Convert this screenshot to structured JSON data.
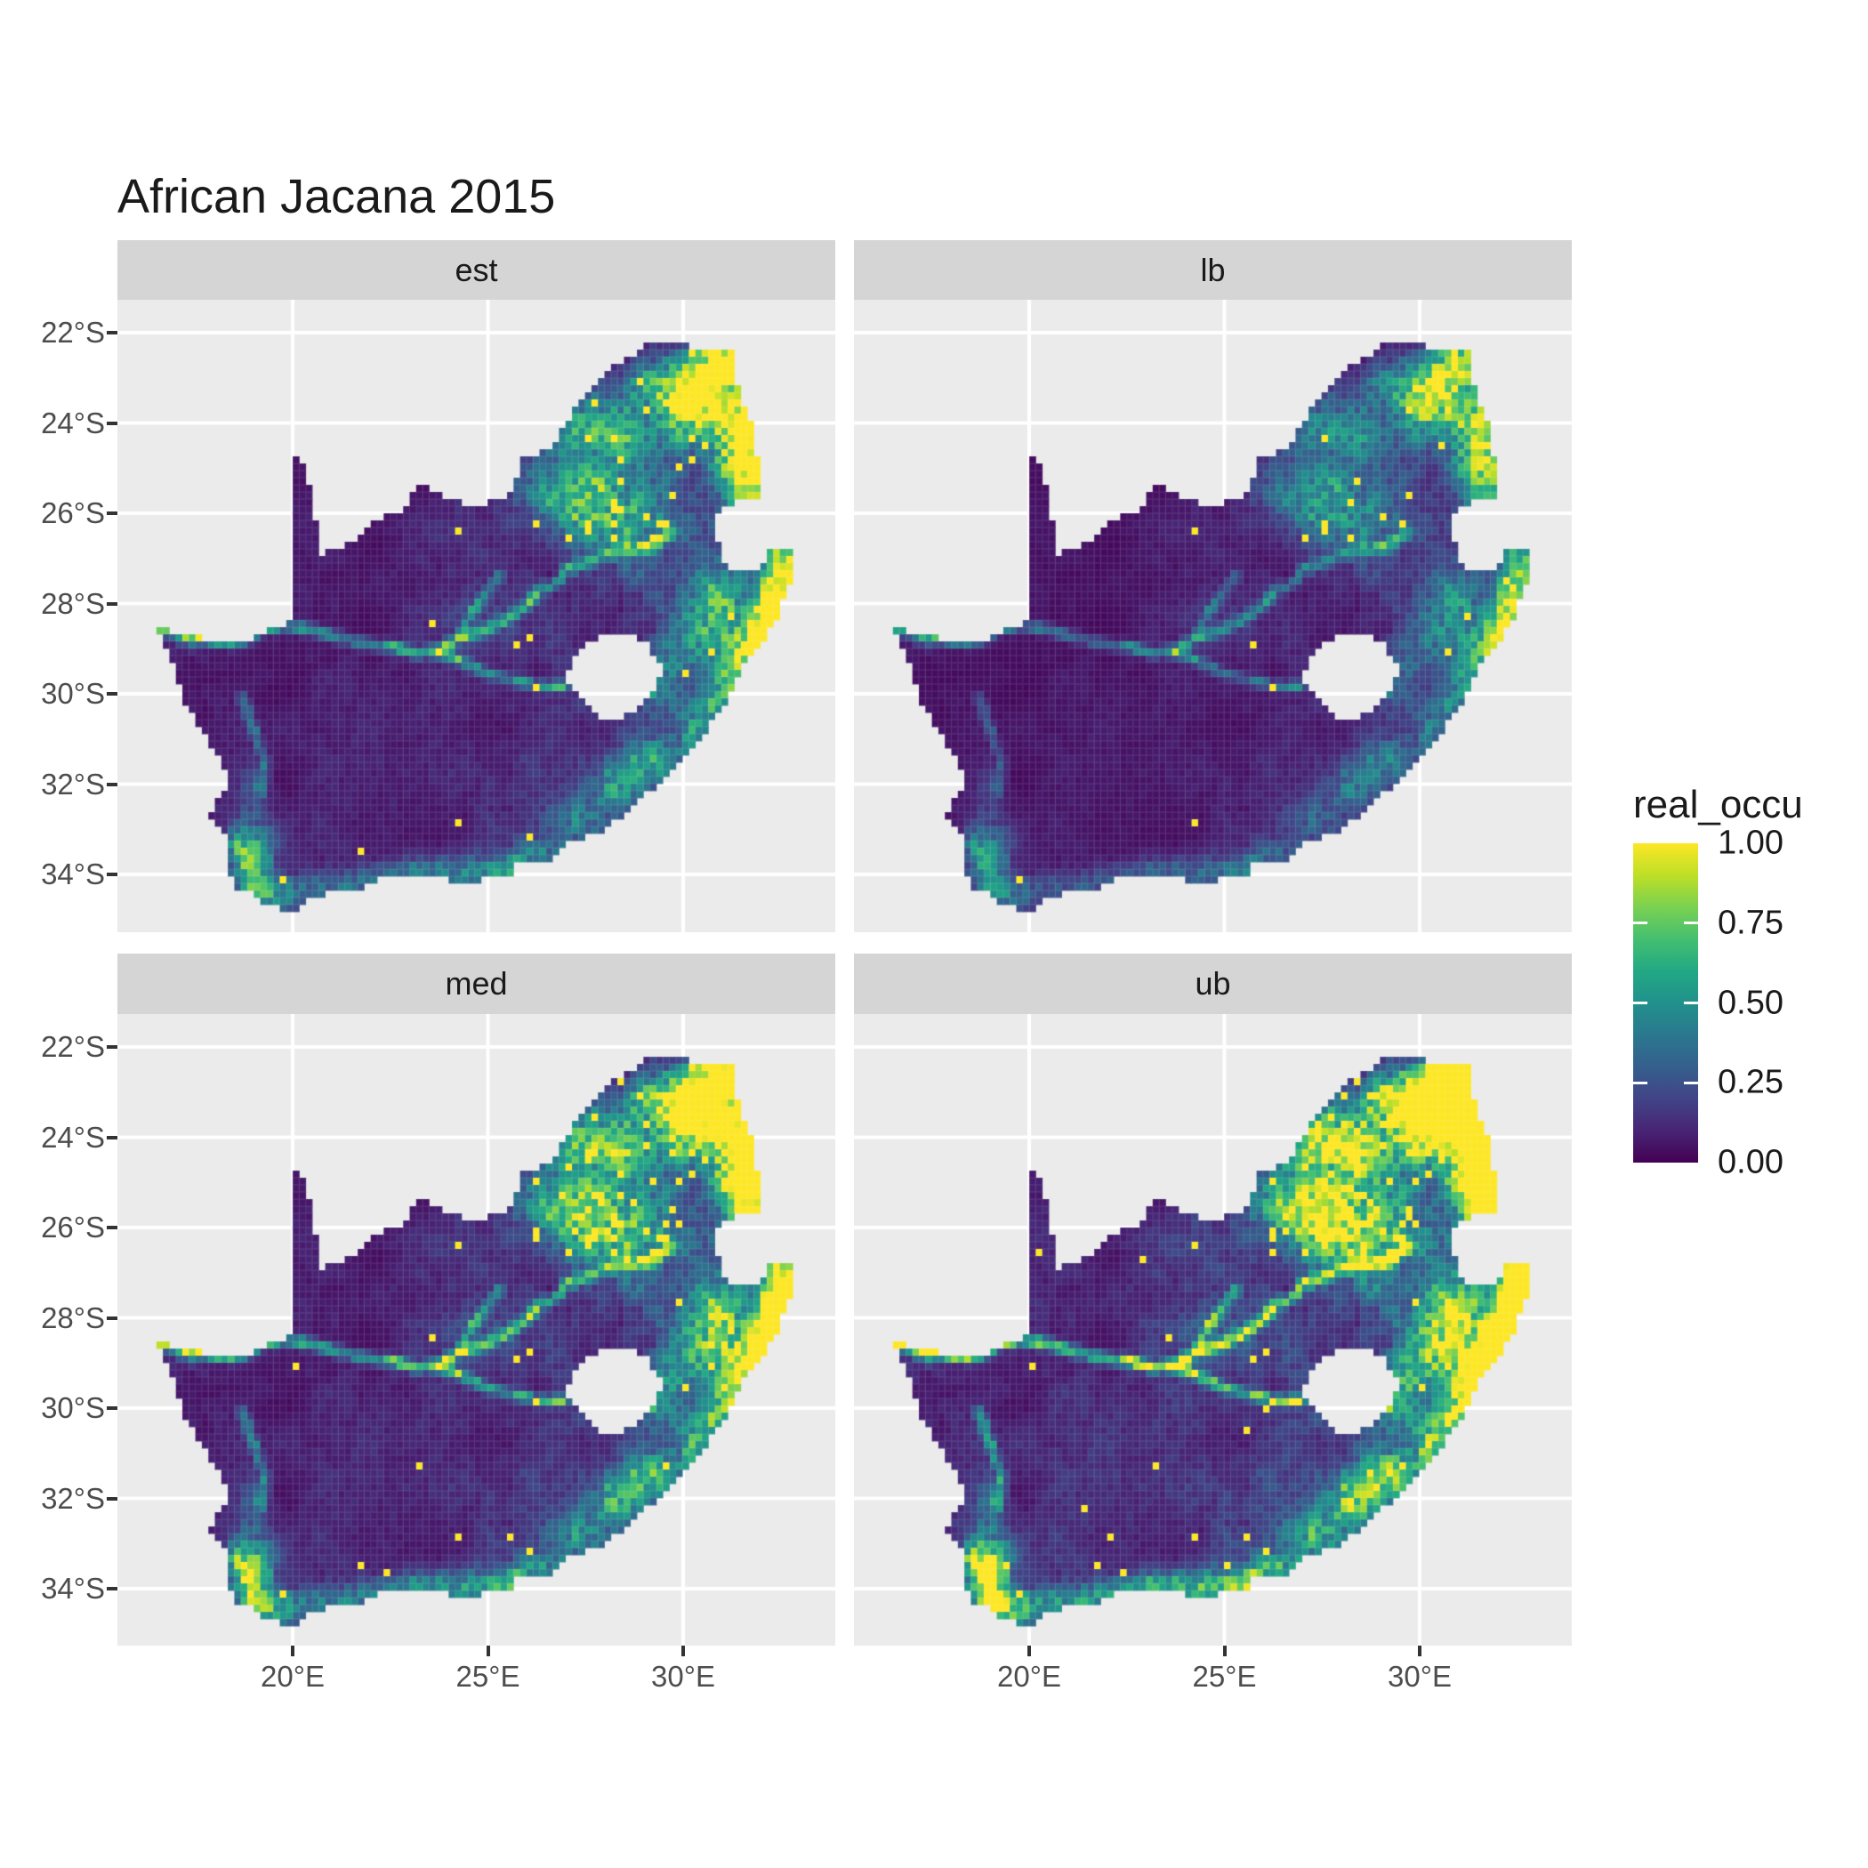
{
  "title": "African Jacana 2015",
  "colors": {
    "background": "#FFFFFF",
    "panel_background": "#EBEBEB",
    "strip_background": "#D5D5D5",
    "grid_line": "#FFFFFF",
    "axis_text": "#4D4D4D",
    "tick_mark": "#333333",
    "text": "#1A1A1A"
  },
  "chart_data": {
    "type": "heatmap",
    "title": "African Jacana 2015",
    "region": "South Africa",
    "facets": [
      {
        "label": "est",
        "value_scale": 1.0,
        "speckle_scale": 1.0
      },
      {
        "label": "lb",
        "value_scale": 0.74,
        "speckle_scale": 0.6
      },
      {
        "label": "med",
        "value_scale": 1.18,
        "speckle_scale": 1.5
      },
      {
        "label": "ub",
        "value_scale": 1.5,
        "speckle_scale": 2.4
      }
    ],
    "x_ticks": [
      {
        "label": "20°E",
        "lon": 20
      },
      {
        "label": "25°E",
        "lon": 25
      },
      {
        "label": "30°E",
        "lon": 30
      }
    ],
    "y_ticks": [
      {
        "label": "22°S",
        "lat_south": 22
      },
      {
        "label": "24°S",
        "lat_south": 24
      },
      {
        "label": "26°S",
        "lat_south": 26
      },
      {
        "label": "28°S",
        "lat_south": 28
      },
      {
        "label": "30°S",
        "lat_south": 30
      },
      {
        "label": "32°S",
        "lat_south": 32
      },
      {
        "label": "34°S",
        "lat_south": 34
      }
    ],
    "legend": {
      "title": "real_occu",
      "value_range": [
        0,
        1
      ],
      "ticks": [
        {
          "label": "1.00",
          "value": 1.0
        },
        {
          "label": "0.75",
          "value": 0.75
        },
        {
          "label": "0.50",
          "value": 0.5
        },
        {
          "label": "0.25",
          "value": 0.25
        },
        {
          "label": "0.00",
          "value": 0.0
        }
      ]
    },
    "viridis": [
      "#440154",
      "#482475",
      "#414487",
      "#355F8D",
      "#2A788E",
      "#21918C",
      "#22A884",
      "#44BF70",
      "#7AD151",
      "#BDDF26",
      "#FDE725"
    ],
    "map": {
      "note": "coordinates are [lon_deg_east, lat_deg_south]",
      "cell_deg_lon": 0.16629,
      "cell_deg_lat": 0.15764,
      "sa_outline": [
        [
          16.45,
          28.58
        ],
        [
          16.78,
          28.95
        ],
        [
          16.92,
          29.35
        ],
        [
          17.06,
          29.66
        ],
        [
          17.26,
          30.2
        ],
        [
          17.56,
          30.62
        ],
        [
          17.86,
          31.1
        ],
        [
          18.26,
          31.66
        ],
        [
          18.31,
          32.05
        ],
        [
          18.06,
          32.4
        ],
        [
          17.87,
          32.76
        ],
        [
          18.26,
          33.06
        ],
        [
          18.32,
          33.5
        ],
        [
          18.26,
          33.92
        ],
        [
          18.46,
          34.1
        ],
        [
          18.41,
          34.36
        ],
        [
          18.81,
          34.32
        ],
        [
          19.0,
          34.42
        ],
        [
          19.32,
          34.64
        ],
        [
          19.72,
          34.76
        ],
        [
          20.03,
          34.83
        ],
        [
          20.56,
          34.48
        ],
        [
          21.01,
          34.4
        ],
        [
          21.56,
          34.41
        ],
        [
          22.16,
          34.1
        ],
        [
          22.61,
          34.05
        ],
        [
          23.06,
          34.1
        ],
        [
          23.96,
          34.1
        ],
        [
          24.56,
          34.2
        ],
        [
          25.01,
          34.02
        ],
        [
          25.66,
          34.04
        ],
        [
          25.72,
          33.8
        ],
        [
          26.46,
          33.78
        ],
        [
          27.06,
          33.26
        ],
        [
          27.91,
          33.06
        ],
        [
          28.61,
          32.6
        ],
        [
          29.21,
          32.1
        ],
        [
          29.91,
          31.46
        ],
        [
          30.61,
          30.8
        ],
        [
          31.11,
          30.16
        ],
        [
          31.36,
          29.6
        ],
        [
          32.01,
          28.86
        ],
        [
          32.41,
          28.3
        ],
        [
          32.71,
          27.6
        ],
        [
          32.9,
          26.87
        ],
        [
          32.13,
          26.85
        ],
        [
          31.96,
          27.32
        ],
        [
          31.51,
          27.31
        ],
        [
          31.11,
          27.21
        ],
        [
          30.96,
          26.81
        ],
        [
          30.81,
          26.41
        ],
        [
          30.91,
          26.01
        ],
        [
          31.11,
          25.81
        ],
        [
          31.46,
          25.73
        ],
        [
          31.96,
          25.66
        ],
        [
          31.91,
          24.81
        ],
        [
          31.81,
          24.21
        ],
        [
          31.56,
          23.61
        ],
        [
          31.31,
          22.91
        ],
        [
          31.29,
          22.4
        ],
        [
          30.81,
          22.31
        ],
        [
          30.31,
          22.36
        ],
        [
          29.61,
          22.17
        ],
        [
          29.11,
          22.21
        ],
        [
          28.56,
          22.58
        ],
        [
          28.01,
          22.81
        ],
        [
          27.66,
          23.21
        ],
        [
          27.21,
          23.66
        ],
        [
          26.86,
          24.26
        ],
        [
          26.41,
          24.64
        ],
        [
          25.91,
          24.76
        ],
        [
          25.81,
          25.16
        ],
        [
          25.41,
          25.66
        ],
        [
          24.91,
          25.79
        ],
        [
          24.31,
          25.77
        ],
        [
          23.71,
          25.56
        ],
        [
          23.26,
          25.31
        ],
        [
          22.81,
          25.91
        ],
        [
          22.16,
          26.16
        ],
        [
          21.56,
          26.61
        ],
        [
          20.96,
          26.81
        ],
        [
          20.69,
          26.91
        ],
        [
          20.61,
          26.36
        ],
        [
          20.49,
          25.71
        ],
        [
          20.36,
          25.11
        ],
        [
          20.26,
          24.91
        ],
        [
          20.0,
          24.77
        ],
        [
          19.99,
          26.01
        ],
        [
          19.99,
          27.01
        ],
        [
          19.99,
          28.05
        ],
        [
          19.98,
          28.42
        ],
        [
          19.41,
          28.56
        ],
        [
          18.71,
          28.86
        ],
        [
          18.11,
          28.91
        ],
        [
          17.61,
          28.76
        ],
        [
          17.11,
          28.61
        ]
      ],
      "lesotho_hole": [
        [
          27.01,
          29.6
        ],
        [
          27.31,
          29.1
        ],
        [
          27.56,
          28.9
        ],
        [
          28.11,
          28.66
        ],
        [
          28.61,
          28.6
        ],
        [
          29.11,
          28.91
        ],
        [
          29.36,
          29.26
        ],
        [
          29.46,
          29.51
        ],
        [
          29.26,
          29.86
        ],
        [
          28.96,
          30.21
        ],
        [
          28.51,
          30.46
        ],
        [
          28.11,
          30.62
        ],
        [
          27.76,
          30.42
        ],
        [
          27.41,
          30.1
        ],
        [
          27.11,
          29.9
        ]
      ],
      "rivers": [
        {
          "amp": 0.5,
          "pts": [
            [
              29.76,
              26.41
            ],
            [
              29.21,
              26.71
            ],
            [
              28.61,
              26.81
            ],
            [
              28.11,
              26.86
            ],
            [
              27.61,
              27.06
            ],
            [
              27.01,
              27.26
            ],
            [
              26.76,
              27.56
            ],
            [
              26.31,
              27.71
            ],
            [
              25.91,
              28.11
            ],
            [
              25.36,
              28.41
            ],
            [
              24.86,
              28.61
            ],
            [
              24.31,
              28.73
            ],
            [
              23.71,
              29.06
            ],
            [
              23.21,
              29.11
            ],
            [
              22.61,
              28.96
            ],
            [
              21.91,
              28.91
            ],
            [
              21.21,
              28.76
            ],
            [
              20.56,
              28.61
            ],
            [
              19.91,
              28.49
            ],
            [
              19.31,
              28.56
            ],
            [
              18.61,
              28.86
            ],
            [
              17.91,
              28.83
            ],
            [
              17.21,
              28.63
            ],
            [
              16.61,
              28.59
            ]
          ]
        },
        {
          "amp": 0.45,
          "pts": [
            [
              26.96,
              29.86
            ],
            [
              26.31,
              29.81
            ],
            [
              25.66,
              29.71
            ],
            [
              25.01,
              29.56
            ],
            [
              24.41,
              29.31
            ],
            [
              23.91,
              29.13
            ],
            [
              23.71,
              29.06
            ]
          ]
        },
        {
          "amp": 0.3,
          "pts": [
            [
              25.31,
              27.41
            ],
            [
              24.91,
              27.81
            ],
            [
              24.56,
              28.21
            ],
            [
              24.31,
              28.73
            ]
          ]
        },
        {
          "amp": 0.3,
          "pts": [
            [
              18.71,
              30.11
            ],
            [
              19.01,
              30.81
            ],
            [
              19.31,
              31.51
            ],
            [
              19.21,
              32.11
            ]
          ]
        }
      ],
      "hotspots": [
        [
          30.55,
          23.05,
          0.55,
          0.5,
          1.2
        ],
        [
          31.15,
          22.6,
          0.45,
          0.3,
          1.0
        ],
        [
          30.1,
          23.8,
          0.45,
          0.4,
          0.75
        ],
        [
          31.4,
          23.8,
          0.45,
          0.6,
          0.85
        ],
        [
          29.35,
          23.15,
          0.55,
          0.35,
          0.6
        ],
        [
          28.45,
          24.3,
          0.85,
          0.6,
          0.5
        ],
        [
          27.3,
          24.2,
          0.75,
          0.5,
          0.4
        ],
        [
          28.25,
          25.9,
          0.85,
          0.6,
          0.55
        ],
        [
          27.4,
          25.8,
          0.65,
          0.45,
          0.4
        ],
        [
          26.6,
          25.45,
          0.7,
          0.45,
          0.32
        ],
        [
          31.4,
          24.8,
          0.5,
          0.7,
          0.75
        ],
        [
          31.9,
          25.3,
          0.4,
          0.6,
          0.85
        ],
        [
          32.55,
          27.3,
          0.38,
          0.55,
          1.15
        ],
        [
          32.3,
          28.2,
          0.33,
          0.5,
          1.0
        ],
        [
          31.9,
          28.8,
          0.33,
          0.45,
          0.8
        ],
        [
          31.35,
          29.55,
          0.3,
          0.4,
          0.65
        ],
        [
          30.75,
          30.25,
          0.3,
          0.4,
          0.6
        ],
        [
          30.15,
          30.9,
          0.3,
          0.35,
          0.5
        ],
        [
          30.4,
          28.9,
          0.75,
          0.6,
          0.4
        ],
        [
          29.4,
          29.9,
          0.55,
          0.5,
          0.3
        ],
        [
          31.0,
          27.9,
          0.5,
          0.5,
          0.45
        ],
        [
          29.1,
          31.4,
          0.5,
          0.4,
          0.5
        ],
        [
          28.3,
          32.1,
          0.5,
          0.4,
          0.45
        ],
        [
          27.4,
          32.8,
          0.55,
          0.35,
          0.42
        ],
        [
          26.55,
          33.55,
          0.55,
          0.3,
          0.4
        ],
        [
          25.6,
          33.9,
          0.5,
          0.28,
          0.42
        ],
        [
          24.4,
          33.95,
          0.65,
          0.25,
          0.38
        ],
        [
          23.1,
          34.0,
          0.6,
          0.25,
          0.36
        ],
        [
          21.9,
          34.2,
          0.6,
          0.25,
          0.33
        ],
        [
          20.45,
          34.4,
          0.55,
          0.28,
          0.42
        ],
        [
          19.55,
          34.45,
          0.4,
          0.3,
          0.5
        ],
        [
          18.9,
          34.05,
          0.35,
          0.45,
          0.65
        ],
        [
          19.1,
          33.4,
          0.35,
          0.35,
          0.45
        ],
        [
          18.55,
          33.3,
          0.28,
          0.3,
          0.4
        ],
        [
          19.0,
          32.3,
          0.3,
          0.5,
          0.18
        ],
        [
          17.35,
          28.75,
          0.18,
          0.15,
          0.55
        ],
        [
          24.8,
          28.2,
          0.8,
          0.6,
          0.15
        ]
      ],
      "speckle_zones": [
        [
          26.2,
          29.8,
          24.6,
          26.6,
          0.05
        ],
        [
          27.0,
          32.2,
          22.2,
          25.0,
          0.028
        ],
        [
          29.6,
          32.4,
          25.0,
          29.2,
          0.015
        ],
        [
          22.0,
          30.0,
          26.6,
          30.5,
          0.004
        ],
        [
          18.5,
          26.5,
          32.6,
          34.6,
          0.006
        ]
      ],
      "base_speckle_p": 0.0015
    }
  }
}
